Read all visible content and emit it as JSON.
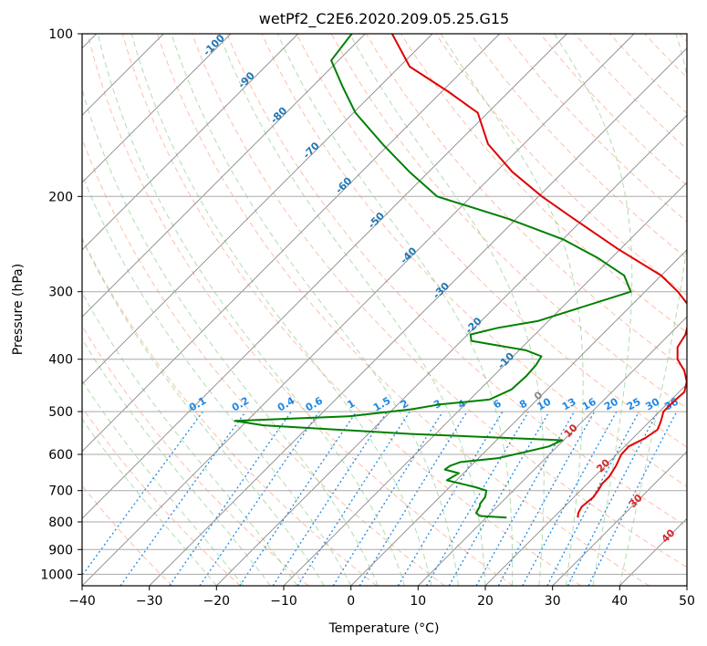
{
  "chart_data": {
    "type": "line",
    "title": "wetPf2_C2E6.2020.209.05.25.G15",
    "xlabel": "Temperature (°C)",
    "ylabel": "Pressure (hPa)",
    "xlim": [
      -40,
      50
    ],
    "ylim": [
      1050,
      100
    ],
    "yscale": "log",
    "skew": "skew-T log-P",
    "grid": true,
    "x_ticks": [
      "−40",
      "−30",
      "−20",
      "−10",
      "0",
      "10",
      "20",
      "30",
      "40",
      "50"
    ],
    "y_ticks": [
      "100",
      "200",
      "300",
      "400",
      "500",
      "600",
      "700",
      "800",
      "900",
      "1000"
    ],
    "isotherm_labels": [
      "-100",
      "-90",
      "-80",
      "-70",
      "-60",
      "-50",
      "-40",
      "-30",
      "-20",
      "-10",
      "0",
      "10",
      "20",
      "30",
      "40"
    ],
    "mixing_ratio_labels": [
      "0.1",
      "0.2",
      "0.4",
      "0.6",
      "1",
      "1.5",
      "2",
      "3",
      "4",
      "6",
      "8",
      "10",
      "13",
      "16",
      "20",
      "25",
      "30",
      "36"
    ],
    "colors": {
      "temperature": "#e00000",
      "dewpoint": "#008000",
      "dry_adiabat": "#fa8c64",
      "moist_adiabat": "#7cc67c",
      "mixing_ratio": "#1e88e5",
      "isotherm": "#888888",
      "isotherm_label_cold": "#1f77b4",
      "isotherm_label_warm": "#d62728"
    },
    "series": [
      {
        "key": "temperature",
        "x": [
          23.6,
          23.0,
          22.6,
          22.9,
          22.6,
          22.2,
          22.2,
          21.6,
          20.7,
          20.6,
          21.8,
          22.4,
          21.6,
          20.6,
          20.6,
          20.8,
          19.6,
          17.6,
          14.9,
          13.1,
          12.4,
          10.9,
          8.9,
          4.9,
          0.0,
          -10.4,
          -21.4,
          -29.5,
          -37.6,
          -45.3,
          -51.5,
          -59.0,
          -68.5,
          -76.0
        ],
        "y": [
          785,
          770,
          750,
          720,
          700,
          680,
          660,
          630,
          600,
          580,
          560,
          540,
          520,
          500,
          480,
          460,
          440,
          420,
          400,
          380,
          360,
          340,
          320,
          300,
          280,
          250,
          220,
          200,
          180,
          160,
          140,
          128,
          115,
          100
        ]
      },
      {
        "key": "dewpoint",
        "x": [
          13.0,
          8.8,
          7.8,
          7.4,
          7.0,
          6.8,
          6.0,
          3.9,
          -1.4,
          -0.7,
          -3.3,
          -3.1,
          -2.1,
          2.8,
          5.8,
          8.7,
          9.8,
          -13.6,
          -36.9,
          -41.8,
          -25.5,
          -17.2,
          -13.8,
          -7.1,
          -5.3,
          -5.1,
          -5.3,
          -5.8,
          -9.0,
          -18.5,
          -19.6,
          -16.5,
          -11.6,
          -2.1,
          -5.5,
          -12.0,
          -20.0,
          -31.1,
          -45.1,
          -52.9,
          -61.0,
          -69.7,
          -75.6,
          -81.1,
          -82.0
        ],
        "y": [
          785,
          780,
          770,
          750,
          740,
          720,
          700,
          690,
          670,
          650,
          640,
          630,
          620,
          610,
          595,
          580,
          565,
          550,
          530,
          520,
          510,
          495,
          485,
          475,
          455,
          430,
          410,
          395,
          385,
          370,
          360,
          350,
          340,
          300,
          280,
          260,
          240,
          220,
          200,
          180,
          160,
          140,
          125,
          112,
          100
        ]
      }
    ]
  }
}
